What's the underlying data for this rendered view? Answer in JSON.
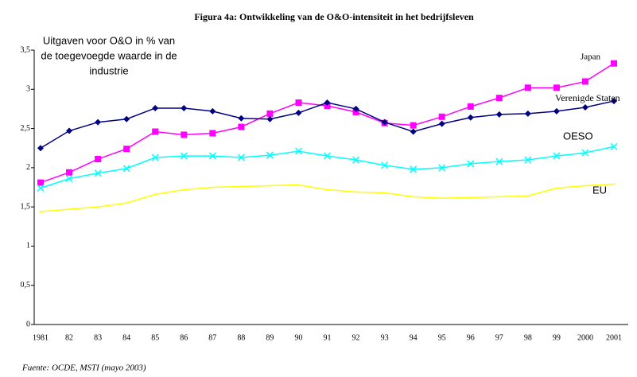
{
  "chart_data": {
    "type": "line",
    "title": "Figura 4a: Ontwikkeling van de O&O-intensiteit in het bedrijfsleven",
    "y_label": [
      "Uitgaven voor O&O in % van",
      "de toegevoegde waarde in de",
      "industrie"
    ],
    "source": "Fuente: OCDE, MSTI (mayo 2003)",
    "categories": [
      "1981",
      "82",
      "83",
      "84",
      "85",
      "86",
      "87",
      "88",
      "89",
      "90",
      "91",
      "92",
      "93",
      "94",
      "95",
      "96",
      "97",
      "98",
      "99",
      "2000",
      "2001"
    ],
    "series": [
      {
        "name": "Japan",
        "color": "#ff00ff",
        "marker": "square",
        "values": [
          1.81,
          1.94,
          2.11,
          2.24,
          2.46,
          2.42,
          2.44,
          2.52,
          2.69,
          2.83,
          2.79,
          2.71,
          2.57,
          2.54,
          2.65,
          2.78,
          2.89,
          3.02,
          3.02,
          3.1,
          3.33
        ]
      },
      {
        "name": "Verenigde Staten",
        "color": "#000080",
        "marker": "diamond",
        "values": [
          2.25,
          2.47,
          2.58,
          2.62,
          2.76,
          2.76,
          2.72,
          2.63,
          2.62,
          2.7,
          2.83,
          2.75,
          2.58,
          2.46,
          2.56,
          2.64,
          2.68,
          2.69,
          2.72,
          2.77,
          2.85
        ]
      },
      {
        "name": "OESO",
        "color": "#00ffff",
        "marker": "x",
        "values": [
          1.74,
          1.86,
          1.93,
          1.99,
          2.13,
          2.15,
          2.15,
          2.13,
          2.16,
          2.21,
          2.15,
          2.1,
          2.03,
          1.98,
          2.0,
          2.05,
          2.08,
          2.1,
          2.15,
          2.19,
          2.27
        ]
      },
      {
        "name": "EU",
        "color": "#ffff00",
        "marker": "dash",
        "values": [
          1.44,
          1.47,
          1.5,
          1.55,
          1.66,
          1.72,
          1.75,
          1.76,
          1.77,
          1.78,
          1.72,
          1.69,
          1.68,
          1.63,
          1.61,
          1.62,
          1.63,
          1.64,
          1.74,
          1.77,
          1.79
        ]
      }
    ],
    "ylim": [
      0,
      3.5
    ],
    "yticks": [
      0,
      {
        "value": 0.5,
        "label": "0,5"
      },
      1,
      {
        "value": 1.5,
        "label": "1,5"
      },
      2,
      {
        "value": 2.5,
        "label": "2,5"
      },
      3,
      {
        "value": 3.5,
        "label": "3,5"
      }
    ],
    "grid": false
  }
}
